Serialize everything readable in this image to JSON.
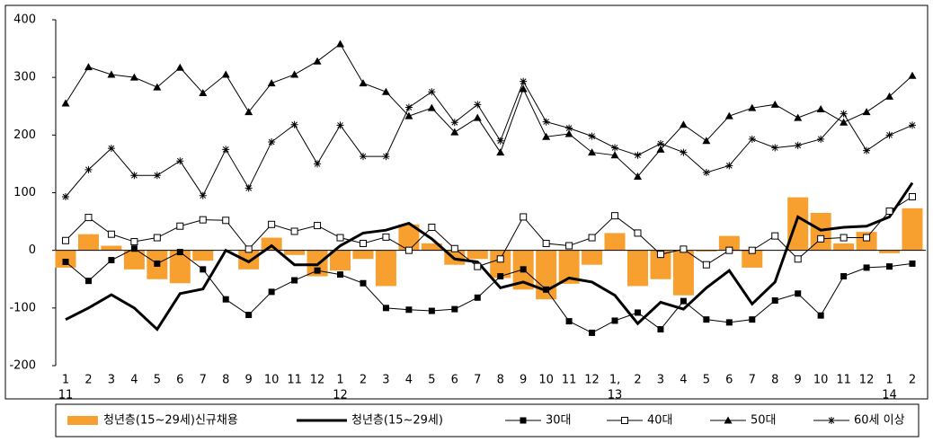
{
  "chart_data": {
    "type": "combo",
    "categories": [
      "1",
      "2",
      "3",
      "4",
      "5",
      "6",
      "7",
      "8",
      "9",
      "10",
      "11",
      "12",
      "1",
      "2",
      "3",
      "4",
      "5",
      "6",
      "7",
      "8",
      "9",
      "10",
      "11",
      "12",
      "1,",
      "2",
      "3",
      "4",
      "5",
      "6",
      "7",
      "8",
      "9",
      "10",
      "11",
      "12",
      "1",
      "2"
    ],
    "category_years": [
      "11",
      null,
      null,
      null,
      null,
      null,
      null,
      null,
      null,
      null,
      null,
      null,
      "12",
      null,
      null,
      null,
      null,
      null,
      null,
      null,
      null,
      null,
      null,
      null,
      "13",
      null,
      null,
      null,
      null,
      null,
      null,
      null,
      null,
      null,
      null,
      null,
      "14",
      null
    ],
    "ylim": [
      -200,
      400
    ],
    "yticks": [
      400,
      300,
      200,
      100,
      0,
      -100,
      -200
    ],
    "series": [
      {
        "name": "청년층(15~29세)신규채용",
        "type": "bar",
        "color": "#f7a030",
        "values": [
          -30,
          28,
          8,
          -33,
          -50,
          -57,
          -18,
          0,
          -33,
          22,
          -8,
          -45,
          -35,
          -15,
          -62,
          45,
          12,
          -25,
          -15,
          -48,
          -68,
          -85,
          -58,
          -25,
          30,
          -62,
          -50,
          -78,
          -2,
          25,
          -30,
          0,
          92,
          65,
          12,
          32,
          -5,
          73
        ]
      },
      {
        "name": "청년층(15~29세)",
        "type": "line",
        "color": "#000000",
        "marker": "none",
        "values": [
          -120,
          -100,
          -77,
          -100,
          -137,
          -75,
          -67,
          0,
          -20,
          8,
          -25,
          -25,
          8,
          30,
          35,
          47,
          20,
          -15,
          -20,
          -65,
          -55,
          -70,
          -48,
          -55,
          -78,
          -127,
          -90,
          -102,
          -65,
          -35,
          -93,
          -55,
          58,
          35,
          40,
          42,
          58,
          117
        ]
      },
      {
        "name": "30대",
        "type": "line",
        "color": "#000000",
        "marker": "square",
        "values": [
          -20,
          -53,
          -17,
          3,
          -23,
          -3,
          -33,
          -85,
          -112,
          -72,
          -52,
          -35,
          -42,
          -57,
          -100,
          -103,
          -105,
          -102,
          -82,
          -45,
          -33,
          -68,
          -123,
          -143,
          -122,
          -108,
          -137,
          -88,
          -120,
          -125,
          -120,
          -87,
          -75,
          -113,
          -45,
          -30,
          -28,
          -23
        ]
      },
      {
        "name": "40대",
        "type": "line",
        "color": "#000000",
        "marker": "open-square",
        "values": [
          17,
          57,
          28,
          15,
          22,
          42,
          53,
          52,
          2,
          45,
          33,
          43,
          22,
          12,
          23,
          0,
          40,
          3,
          -28,
          -15,
          58,
          12,
          8,
          22,
          60,
          30,
          -7,
          2,
          -25,
          0,
          0,
          25,
          -15,
          20,
          22,
          22,
          68,
          93
        ]
      },
      {
        "name": "50대",
        "type": "line",
        "color": "#000000",
        "marker": "triangle",
        "values": [
          255,
          318,
          305,
          300,
          283,
          317,
          273,
          305,
          240,
          290,
          305,
          328,
          358,
          290,
          275,
          233,
          247,
          205,
          230,
          170,
          280,
          197,
          202,
          170,
          165,
          128,
          175,
          218,
          190,
          233,
          247,
          253,
          230,
          245,
          222,
          240,
          267,
          303
        ]
      },
      {
        "name": "60세 이상",
        "type": "line",
        "color": "#000000",
        "marker": "star",
        "values": [
          93,
          140,
          177,
          130,
          130,
          155,
          95,
          175,
          108,
          188,
          218,
          150,
          217,
          163,
          163,
          248,
          275,
          222,
          253,
          190,
          293,
          223,
          212,
          198,
          178,
          165,
          185,
          170,
          135,
          147,
          193,
          178,
          182,
          193,
          237,
          173,
          200,
          217
        ]
      }
    ]
  }
}
